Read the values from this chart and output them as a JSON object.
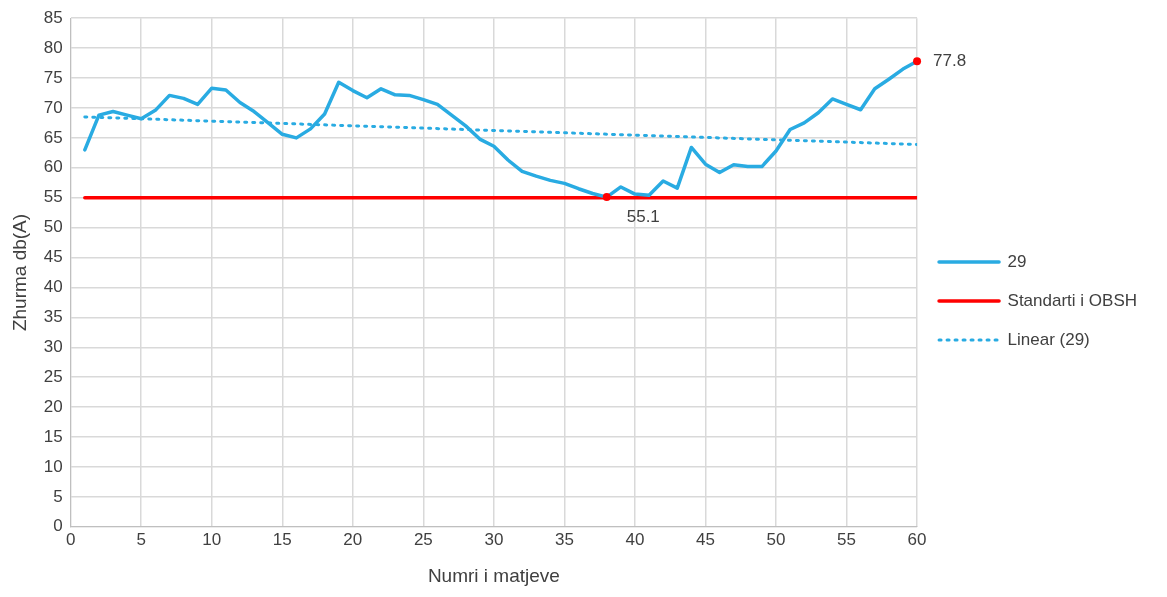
{
  "chart_data": {
    "type": "line",
    "xlabel": "Numri i matjeve",
    "ylabel": "Zhurma db(A)",
    "x": [
      1,
      2,
      3,
      4,
      5,
      6,
      7,
      8,
      9,
      10,
      11,
      12,
      13,
      14,
      15,
      16,
      17,
      18,
      19,
      20,
      21,
      22,
      23,
      24,
      25,
      26,
      27,
      28,
      29,
      30,
      31,
      32,
      33,
      34,
      35,
      36,
      37,
      38,
      39,
      40,
      41,
      42,
      43,
      44,
      45,
      46,
      47,
      48,
      49,
      50,
      51,
      52,
      53,
      54,
      55,
      56,
      57,
      58,
      59,
      60
    ],
    "series": [
      {
        "name": "29",
        "color": "#29abe2",
        "values": [
          63.0,
          68.8,
          69.4,
          68.8,
          68.2,
          69.6,
          72.1,
          71.6,
          70.6,
          73.3,
          73.0,
          70.9,
          69.4,
          67.5,
          65.6,
          65.0,
          66.5,
          69.0,
          74.3,
          72.9,
          71.7,
          73.2,
          72.2,
          72.1,
          71.4,
          70.6,
          68.8,
          67.0,
          64.8,
          63.6,
          61.3,
          59.4,
          58.6,
          57.9,
          57.4,
          56.5,
          55.7,
          55.1,
          56.8,
          55.6,
          55.4,
          57.8,
          56.6,
          63.4,
          60.6,
          59.2,
          60.5,
          60.2,
          60.2,
          62.8,
          66.4,
          67.5,
          69.2,
          71.5,
          70.6,
          69.7,
          73.2,
          74.8,
          76.5,
          77.8
        ]
      },
      {
        "name": "Standarti i OBSH",
        "color": "#ff0000",
        "values": [
          55,
          55,
          55,
          55,
          55,
          55,
          55,
          55,
          55,
          55,
          55,
          55,
          55,
          55,
          55,
          55,
          55,
          55,
          55,
          55,
          55,
          55,
          55,
          55,
          55,
          55,
          55,
          55,
          55,
          55,
          55,
          55,
          55,
          55,
          55,
          55,
          55,
          55,
          55,
          55,
          55,
          55,
          55,
          55,
          55,
          55,
          55,
          55,
          55,
          55,
          55,
          55,
          55,
          55,
          55,
          55,
          55,
          55,
          55,
          55
        ]
      },
      {
        "name": "Linear (29)",
        "color": "#29abe2",
        "type": "line",
        "line_style": "dotted",
        "x": [
          1,
          60
        ],
        "values": [
          68.5,
          63.9
        ]
      }
    ],
    "annotations": [
      {
        "text": "55.1",
        "x": 38,
        "y": 55.1
      },
      {
        "text": "77.8",
        "x": 60,
        "y": 77.8
      }
    ],
    "xlim": [
      0,
      60
    ],
    "xticks": [
      0,
      5,
      10,
      15,
      20,
      25,
      30,
      35,
      40,
      45,
      50,
      55,
      60
    ],
    "ylim": [
      0,
      85
    ],
    "yticks": [
      0,
      5,
      10,
      15,
      20,
      25,
      30,
      35,
      40,
      45,
      50,
      55,
      60,
      65,
      70,
      75,
      80,
      85
    ],
    "grid": true,
    "legend": "right",
    "marker": "none",
    "line_style": "solid"
  }
}
